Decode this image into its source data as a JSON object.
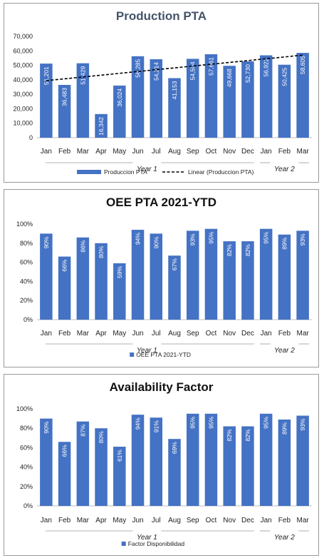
{
  "chart_data": [
    {
      "type": "bar",
      "title": "Production PTA",
      "categories": [
        "Jan",
        "Feb",
        "Mar",
        "Apr",
        "May",
        "Jun",
        "Jul",
        "Aug",
        "Sep",
        "Oct",
        "Nov",
        "Dec",
        "Jan",
        "Feb",
        "Mar"
      ],
      "groups": [
        {
          "label": "Year 1",
          "count": 12
        },
        {
          "label": "Year 2",
          "count": 3
        }
      ],
      "series": [
        {
          "name": "Produccion PTA",
          "values": [
            51201,
            36483,
            51429,
            16342,
            36024,
            56285,
            54214,
            41153,
            54504,
            57661,
            49668,
            52730,
            56922,
            50425,
            58605
          ]
        }
      ],
      "data_labels": [
        "51,201",
        "36,483",
        "51,429",
        "16,342",
        "36,024",
        "56,285",
        "54,214",
        "41,153",
        "54,504",
        "57,661",
        "49,668",
        "52,730",
        "56,922",
        "50,425",
        "58,605"
      ],
      "trendline": {
        "name": "Linear (Produccion PTA)",
        "type": "linear"
      },
      "ylim": [
        0,
        70000
      ],
      "yticks": [
        0,
        10000,
        20000,
        30000,
        40000,
        50000,
        60000,
        70000
      ],
      "ytick_labels": [
        "0",
        "10,000",
        "20,000",
        "30,000",
        "40,000",
        "50,000",
        "60,000",
        "70,000"
      ],
      "legend": "bottom",
      "grid": false,
      "color": "#4472c4"
    },
    {
      "type": "bar",
      "title": "OEE PTA 2021-YTD",
      "categories": [
        "Jan",
        "Feb",
        "Mar",
        "Apr",
        "May",
        "Jun",
        "Jul",
        "Aug",
        "Sep",
        "Oct",
        "Nov",
        "Dec",
        "Jan",
        "Feb",
        "Mar"
      ],
      "groups": [
        {
          "label": "Year 1",
          "count": 12
        },
        {
          "label": "Year 2",
          "count": 3
        }
      ],
      "series": [
        {
          "name": "OEE PTA 2021-YTD",
          "values": [
            90,
            66,
            86,
            80,
            59,
            94,
            90,
            67,
            93,
            95,
            82,
            82,
            95,
            89,
            93
          ]
        }
      ],
      "data_labels": [
        "90%",
        "66%",
        "86%",
        "80%",
        "59%",
        "94%",
        "90%",
        "67%",
        "93%",
        "95%",
        "82%",
        "82%",
        "95%",
        "89%",
        "93%"
      ],
      "ylim": [
        0,
        100
      ],
      "yticks": [
        0,
        20,
        40,
        60,
        80,
        100
      ],
      "ytick_labels": [
        "0%",
        "20%",
        "40%",
        "60%",
        "80%",
        "100%"
      ],
      "legend": "bottom",
      "grid": false,
      "color": "#4472c4"
    },
    {
      "type": "bar",
      "title": "Availability Factor",
      "categories": [
        "Jan",
        "Feb",
        "Mar",
        "Apr",
        "May",
        "Jun",
        "Jul",
        "Aug",
        "Sep",
        "Oct",
        "Nov",
        "Dec",
        "Jan",
        "Feb",
        "Mar"
      ],
      "groups": [
        {
          "label": "Year 1",
          "count": 12
        },
        {
          "label": "Year 2",
          "count": 3
        }
      ],
      "series": [
        {
          "name": "Factor Disponibilidad",
          "values": [
            90,
            66,
            87,
            80,
            61,
            94,
            91,
            69,
            95,
            95,
            82,
            82,
            95,
            89,
            93
          ]
        }
      ],
      "data_labels": [
        "90%",
        "66%",
        "87%",
        "80%",
        "61%",
        "94%",
        "91%",
        "69%",
        "95%",
        "95%",
        "82%",
        "82%",
        "95%",
        "89%",
        "93%"
      ],
      "ylim": [
        0,
        100
      ],
      "yticks": [
        0,
        20,
        40,
        60,
        80,
        100
      ],
      "ytick_labels": [
        "0%",
        "20%",
        "40%",
        "60%",
        "80%",
        "100%"
      ],
      "legend": "bottom",
      "grid": false,
      "color": "#4472c4"
    }
  ]
}
